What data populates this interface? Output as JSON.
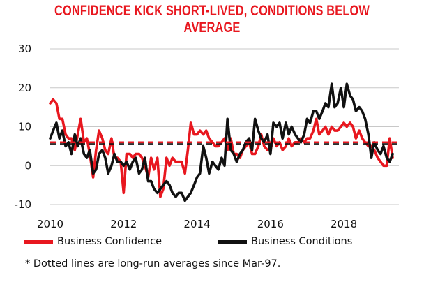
{
  "chart_data": {
    "type": "line",
    "title": "CONFIDENCE KICK SHORT-LIVED, CONDITIONS BELOW AVERAGE",
    "ylim": [
      -10,
      30
    ],
    "yticks": [
      -10,
      0,
      10,
      20,
      30
    ],
    "xlim": [
      2010,
      2019.5
    ],
    "xticks": [
      2010,
      2012,
      2014,
      2016,
      2018
    ],
    "grid": true,
    "legend_position": "bottom",
    "series": [
      {
        "name": "Business Confidence",
        "color": "#e8171f",
        "avg": 6,
        "points": [
          [
            2010.0,
            16
          ],
          [
            2010.08,
            17
          ],
          [
            2010.17,
            16
          ],
          [
            2010.25,
            12
          ],
          [
            2010.33,
            12
          ],
          [
            2010.42,
            8
          ],
          [
            2010.5,
            7
          ],
          [
            2010.58,
            7
          ],
          [
            2010.67,
            4
          ],
          [
            2010.75,
            8
          ],
          [
            2010.83,
            12
          ],
          [
            2010.92,
            6
          ],
          [
            2011.0,
            7
          ],
          [
            2011.08,
            3
          ],
          [
            2011.17,
            -3
          ],
          [
            2011.25,
            4
          ],
          [
            2011.33,
            9
          ],
          [
            2011.42,
            7
          ],
          [
            2011.5,
            4
          ],
          [
            2011.58,
            3
          ],
          [
            2011.67,
            7
          ],
          [
            2011.75,
            2
          ],
          [
            2011.83,
            2
          ],
          [
            2011.92,
            1
          ],
          [
            2012.0,
            -7
          ],
          [
            2012.08,
            3
          ],
          [
            2012.17,
            3
          ],
          [
            2012.25,
            2
          ],
          [
            2012.33,
            3
          ],
          [
            2012.42,
            3
          ],
          [
            2012.5,
            2
          ],
          [
            2012.58,
            0
          ],
          [
            2012.67,
            -3
          ],
          [
            2012.75,
            2
          ],
          [
            2012.83,
            -1
          ],
          [
            2012.92,
            2
          ],
          [
            2013.0,
            -8
          ],
          [
            2013.08,
            -6
          ],
          [
            2013.17,
            2
          ],
          [
            2013.25,
            0
          ],
          [
            2013.33,
            2
          ],
          [
            2013.42,
            1
          ],
          [
            2013.5,
            1
          ],
          [
            2013.58,
            1
          ],
          [
            2013.67,
            -2
          ],
          [
            2013.75,
            4
          ],
          [
            2013.83,
            11
          ],
          [
            2013.92,
            8
          ],
          [
            2014.0,
            8
          ],
          [
            2014.08,
            9
          ],
          [
            2014.17,
            8
          ],
          [
            2014.25,
            9
          ],
          [
            2014.33,
            7
          ],
          [
            2014.42,
            6
          ],
          [
            2014.5,
            5
          ],
          [
            2014.58,
            5
          ],
          [
            2014.67,
            6
          ],
          [
            2014.75,
            7
          ],
          [
            2014.83,
            4
          ],
          [
            2014.92,
            7
          ],
          [
            2015.0,
            3
          ],
          [
            2015.08,
            3
          ],
          [
            2015.17,
            2
          ],
          [
            2015.25,
            4
          ],
          [
            2015.33,
            5
          ],
          [
            2015.42,
            6
          ],
          [
            2015.5,
            3
          ],
          [
            2015.58,
            3
          ],
          [
            2015.67,
            5
          ],
          [
            2015.75,
            8
          ],
          [
            2015.83,
            5
          ],
          [
            2015.92,
            4
          ],
          [
            2016.0,
            4
          ],
          [
            2016.08,
            7
          ],
          [
            2016.17,
            5
          ],
          [
            2016.25,
            6
          ],
          [
            2016.33,
            4
          ],
          [
            2016.42,
            5
          ],
          [
            2016.5,
            7
          ],
          [
            2016.58,
            5
          ],
          [
            2016.67,
            6
          ],
          [
            2016.75,
            6
          ],
          [
            2016.83,
            7
          ],
          [
            2016.92,
            6
          ],
          [
            2017.0,
            7
          ],
          [
            2017.08,
            7
          ],
          [
            2017.17,
            9
          ],
          [
            2017.25,
            12
          ],
          [
            2017.33,
            8
          ],
          [
            2017.42,
            9
          ],
          [
            2017.5,
            10
          ],
          [
            2017.58,
            8
          ],
          [
            2017.67,
            10
          ],
          [
            2017.75,
            9
          ],
          [
            2017.83,
            9
          ],
          [
            2017.92,
            10
          ],
          [
            2018.0,
            11
          ],
          [
            2018.08,
            10
          ],
          [
            2018.17,
            11
          ],
          [
            2018.25,
            10
          ],
          [
            2018.33,
            7
          ],
          [
            2018.42,
            9
          ],
          [
            2018.5,
            7
          ],
          [
            2018.58,
            6
          ],
          [
            2018.67,
            5
          ],
          [
            2018.75,
            5
          ],
          [
            2018.83,
            4
          ],
          [
            2018.92,
            2
          ],
          [
            2019.0,
            1
          ],
          [
            2019.08,
            0
          ],
          [
            2019.17,
            0
          ],
          [
            2019.25,
            7
          ],
          [
            2019.33,
            2
          ]
        ]
      },
      {
        "name": "Business Conditions",
        "color": "#111111",
        "avg": 5.5,
        "points": [
          [
            2010.0,
            7
          ],
          [
            2010.08,
            9
          ],
          [
            2010.17,
            11
          ],
          [
            2010.25,
            7
          ],
          [
            2010.33,
            9
          ],
          [
            2010.42,
            5
          ],
          [
            2010.5,
            6
          ],
          [
            2010.58,
            3
          ],
          [
            2010.67,
            8
          ],
          [
            2010.75,
            5
          ],
          [
            2010.83,
            7
          ],
          [
            2010.92,
            3
          ],
          [
            2011.0,
            2
          ],
          [
            2011.08,
            4
          ],
          [
            2011.17,
            -2
          ],
          [
            2011.25,
            -1
          ],
          [
            2011.33,
            3
          ],
          [
            2011.42,
            4
          ],
          [
            2011.5,
            2
          ],
          [
            2011.58,
            -2
          ],
          [
            2011.67,
            0
          ],
          [
            2011.75,
            3
          ],
          [
            2011.83,
            1
          ],
          [
            2011.92,
            1
          ],
          [
            2012.0,
            0
          ],
          [
            2012.08,
            1
          ],
          [
            2012.17,
            -1
          ],
          [
            2012.25,
            1
          ],
          [
            2012.33,
            2
          ],
          [
            2012.42,
            -2
          ],
          [
            2012.5,
            -1
          ],
          [
            2012.58,
            2
          ],
          [
            2012.67,
            -4
          ],
          [
            2012.75,
            -4
          ],
          [
            2012.83,
            -6
          ],
          [
            2012.92,
            -7
          ],
          [
            2013.0,
            -6
          ],
          [
            2013.08,
            -5
          ],
          [
            2013.17,
            -4
          ],
          [
            2013.25,
            -5
          ],
          [
            2013.33,
            -7
          ],
          [
            2013.42,
            -8
          ],
          [
            2013.5,
            -7
          ],
          [
            2013.58,
            -7
          ],
          [
            2013.67,
            -9
          ],
          [
            2013.75,
            -8
          ],
          [
            2013.83,
            -7
          ],
          [
            2013.92,
            -5
          ],
          [
            2014.0,
            -3
          ],
          [
            2014.08,
            -2
          ],
          [
            2014.17,
            5
          ],
          [
            2014.25,
            2
          ],
          [
            2014.33,
            -2
          ],
          [
            2014.42,
            1
          ],
          [
            2014.5,
            0
          ],
          [
            2014.58,
            -1
          ],
          [
            2014.67,
            2
          ],
          [
            2014.75,
            0
          ],
          [
            2014.83,
            12
          ],
          [
            2014.92,
            4
          ],
          [
            2015.0,
            3
          ],
          [
            2015.08,
            1
          ],
          [
            2015.17,
            3
          ],
          [
            2015.25,
            4
          ],
          [
            2015.33,
            6
          ],
          [
            2015.42,
            7
          ],
          [
            2015.5,
            4
          ],
          [
            2015.58,
            12
          ],
          [
            2015.67,
            9
          ],
          [
            2015.75,
            7
          ],
          [
            2015.83,
            6
          ],
          [
            2015.92,
            8
          ],
          [
            2016.0,
            3
          ],
          [
            2016.08,
            11
          ],
          [
            2016.17,
            10
          ],
          [
            2016.25,
            11
          ],
          [
            2016.33,
            7
          ],
          [
            2016.42,
            11
          ],
          [
            2016.5,
            8
          ],
          [
            2016.58,
            10
          ],
          [
            2016.67,
            8
          ],
          [
            2016.75,
            7
          ],
          [
            2016.83,
            6
          ],
          [
            2016.92,
            8
          ],
          [
            2017.0,
            12
          ],
          [
            2017.08,
            11
          ],
          [
            2017.17,
            14
          ],
          [
            2017.25,
            14
          ],
          [
            2017.33,
            12
          ],
          [
            2017.42,
            14
          ],
          [
            2017.5,
            16
          ],
          [
            2017.58,
            15
          ],
          [
            2017.67,
            21
          ],
          [
            2017.75,
            15
          ],
          [
            2017.83,
            16
          ],
          [
            2017.92,
            20
          ],
          [
            2018.0,
            15
          ],
          [
            2018.08,
            21
          ],
          [
            2018.17,
            18
          ],
          [
            2018.25,
            17
          ],
          [
            2018.33,
            14
          ],
          [
            2018.42,
            15
          ],
          [
            2018.5,
            14
          ],
          [
            2018.58,
            12
          ],
          [
            2018.67,
            8
          ],
          [
            2018.75,
            2
          ],
          [
            2018.83,
            6
          ],
          [
            2018.92,
            4
          ],
          [
            2019.0,
            3
          ],
          [
            2019.08,
            5
          ],
          [
            2019.17,
            2
          ],
          [
            2019.25,
            1
          ],
          [
            2019.33,
            3
          ]
        ]
      }
    ],
    "legend": [
      {
        "label": "Business Confidence",
        "color": "#e8171f"
      },
      {
        "label": "Business Conditions",
        "color": "#111111"
      }
    ],
    "footnote": "* Dotted lines are long-run averages since Mar-97."
  }
}
